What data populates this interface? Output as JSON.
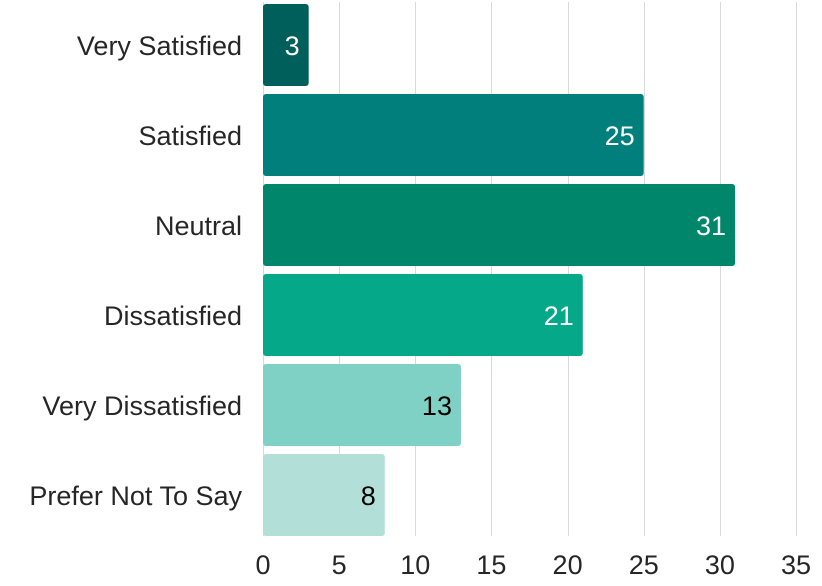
{
  "chart_data": {
    "type": "bar",
    "orientation": "horizontal",
    "title": "",
    "xlabel": "",
    "ylabel": "",
    "categories": [
      "Very Satisfied",
      "Satisfied",
      "Neutral",
      "Dissatisfied",
      "Very Dissatisfied",
      "Prefer Not To Say"
    ],
    "values": [
      3,
      25,
      31,
      21,
      13,
      8
    ],
    "xlim": [
      0,
      35
    ],
    "xticks": [
      0,
      5,
      10,
      15,
      20,
      25,
      30,
      35
    ],
    "grid": true,
    "legend": "none",
    "bar_colors": [
      "#005f5a",
      "#007f7d",
      "#00866a",
      "#05a98a",
      "#80d1c5",
      "#b3dfd9"
    ],
    "label_colors": [
      "#ffffff",
      "#ffffff",
      "#ffffff",
      "#ffffff",
      "#000000",
      "#000000"
    ]
  }
}
